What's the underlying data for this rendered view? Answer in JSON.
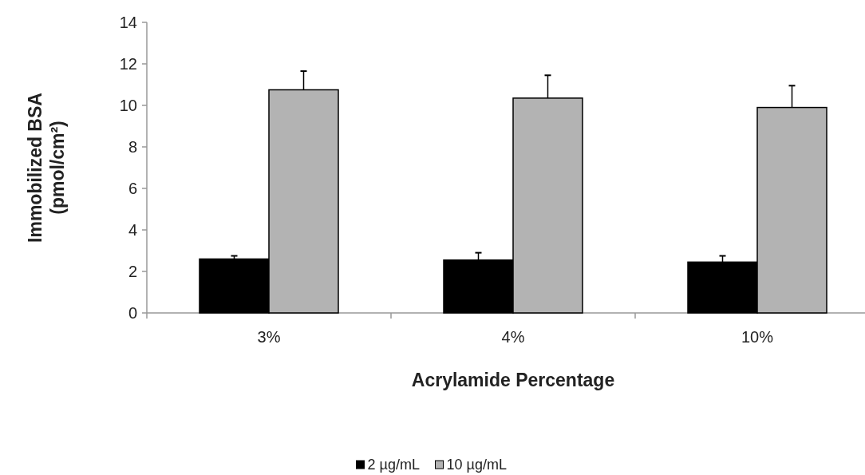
{
  "chart_data": {
    "type": "bar",
    "xlabel": "Acrylamide Percentage",
    "ylabel": "Immobilized BSA\n(pmol/cm²)",
    "categories": [
      "3%",
      "4%",
      "10%"
    ],
    "series": [
      {
        "name": "2 µg/mL",
        "color": "#000000",
        "values": [
          2.6,
          2.55,
          2.45
        ],
        "errors": [
          0.15,
          0.35,
          0.3
        ]
      },
      {
        "name": "10 µg/mL",
        "color": "#b3b3b3",
        "values": [
          10.75,
          10.35,
          9.9
        ],
        "errors": [
          0.9,
          1.1,
          1.05
        ]
      }
    ],
    "ylim": [
      0,
      14
    ],
    "yticks": [
      0,
      2,
      4,
      6,
      8,
      10,
      12,
      14
    ],
    "grid": false,
    "legend": "bottom"
  }
}
